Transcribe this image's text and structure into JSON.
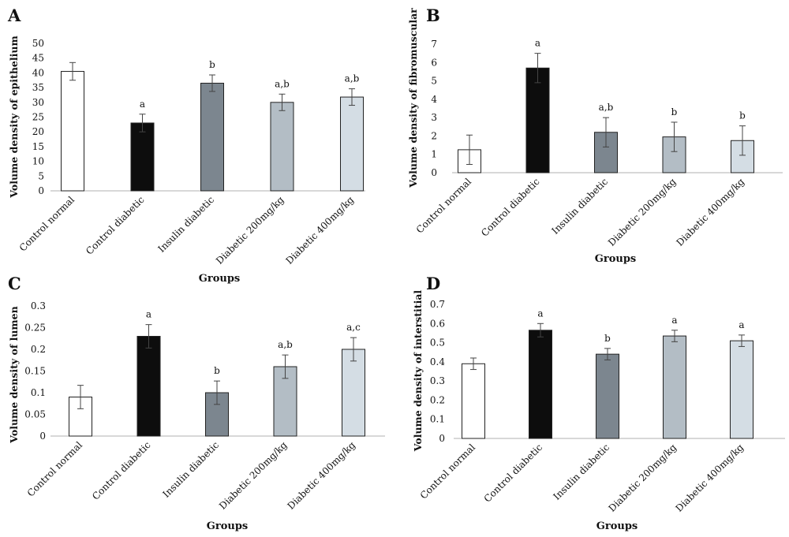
{
  "chart_data": [
    {
      "type": "bar",
      "panel": "A",
      "ylabel": "Volume density of epithelium",
      "xlabel": "Groups",
      "categories": [
        "Control normal",
        "Control diabetic",
        "Insulin diabetic",
        "Diabetic 200mg/kg",
        "Diabetic 400mg/kg"
      ],
      "values": [
        40.5,
        23,
        36.5,
        30,
        31.8
      ],
      "errors": [
        3.0,
        3.0,
        2.8,
        2.8,
        2.8
      ],
      "significance": [
        "",
        "a",
        "b",
        "a,b",
        "a,b"
      ],
      "colors": [
        "#ffffff",
        "#0d0d0d",
        "#7c868f",
        "#b3bdc5",
        "#d4dde4"
      ],
      "ylim": [
        0,
        50
      ],
      "yticks": [
        "0",
        "5",
        "10",
        "15",
        "20",
        "25",
        "30",
        "35",
        "40",
        "45",
        "50"
      ],
      "grid": false
    },
    {
      "type": "bar",
      "panel": "B",
      "ylabel": "Volume density of fibromuscular",
      "xlabel": "Groups",
      "categories": [
        "Control normal",
        "Control diabetic",
        "Insulin diabetic",
        "Diabetic 200mg/kg",
        "Diabetic 400mg/kg"
      ],
      "values": [
        1.25,
        5.7,
        2.2,
        1.95,
        1.75
      ],
      "errors": [
        0.8,
        0.8,
        0.8,
        0.8,
        0.8
      ],
      "significance": [
        "",
        "a",
        "a,b",
        "b",
        "b"
      ],
      "colors": [
        "#ffffff",
        "#0d0d0d",
        "#7c868f",
        "#b3bdc5",
        "#d4dde4"
      ],
      "ylim": [
        0,
        7
      ],
      "yticks": [
        "0",
        "1",
        "2",
        "3",
        "4",
        "5",
        "6",
        "7"
      ],
      "grid": false
    },
    {
      "type": "bar",
      "panel": "C",
      "ylabel": "Volume density of lumen",
      "xlabel": "Groups",
      "categories": [
        "Control normal",
        "Control diabetic",
        "Insulin diabetic",
        "Diabetic 200mg/kg",
        "Diabetic 400mg/kg"
      ],
      "values": [
        0.09,
        0.23,
        0.1,
        0.16,
        0.2
      ],
      "errors": [
        0.027,
        0.027,
        0.027,
        0.027,
        0.027
      ],
      "significance": [
        "",
        "a",
        "b",
        "a,b",
        "a,c"
      ],
      "colors": [
        "#ffffff",
        "#0d0d0d",
        "#7c868f",
        "#b3bdc5",
        "#d4dde4"
      ],
      "ylim": [
        0,
        0.3
      ],
      "yticks": [
        "0",
        "0.05",
        "0.1",
        "0.15",
        "0.2",
        "0.25",
        "0.3"
      ],
      "grid": false
    },
    {
      "type": "bar",
      "panel": "D",
      "ylabel": "Volume density of interstitial",
      "xlabel": "Groups",
      "categories": [
        "Control normal",
        "Control diabetic",
        "Insulin diabetic",
        "Diabetic 200mg/kg",
        "Diabetic 400mg/kg"
      ],
      "values": [
        0.39,
        0.565,
        0.44,
        0.535,
        0.51
      ],
      "errors": [
        0.03,
        0.035,
        0.03,
        0.03,
        0.03
      ],
      "significance": [
        "",
        "a",
        "b",
        "a",
        "a"
      ],
      "colors": [
        "#ffffff",
        "#0d0d0d",
        "#7c868f",
        "#b3bdc5",
        "#d4dde4"
      ],
      "ylim": [
        0,
        0.7
      ],
      "yticks": [
        "0",
        "0.1",
        "0.2",
        "0.3",
        "0.4",
        "0.5",
        "0.6",
        "0.7"
      ],
      "grid": false
    }
  ]
}
